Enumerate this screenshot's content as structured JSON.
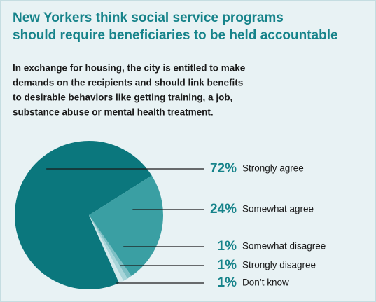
{
  "chart_data": {
    "type": "pie",
    "title": [
      "New Yorkers think social service programs",
      "should require beneficiaries to be held accountable"
    ],
    "subtitle": [
      "In exchange for housing, the city is entitled to make",
      "demands on the recipients and should link benefits",
      "to desirable behaviors like getting training, a job,",
      "substance abuse or mental health treatment."
    ],
    "categories": [
      "Strongly agree",
      "Somewhat agree",
      "Somewhat disagree",
      "Strongly disagree",
      "Don’t know"
    ],
    "values": [
      72,
      24,
      1,
      1,
      1
    ],
    "value_labels": [
      "72%",
      "24%",
      "1%",
      "1%",
      "1%"
    ],
    "colors": [
      "#0b777d",
      "#3a9fa3",
      "#7dbfc4",
      "#a8d5d9",
      "#d3e9ec"
    ]
  }
}
